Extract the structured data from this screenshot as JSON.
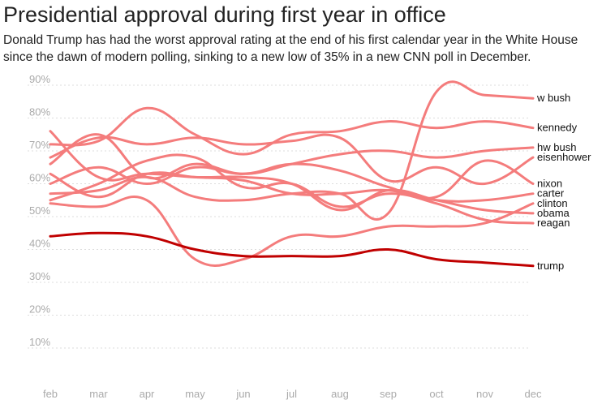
{
  "title": "Presidential approval during first year in office",
  "subtitle": "Donald Trump has had the worst approval rating at the end of his first calendar year in the White House since the dawn of modern polling, sinking to a new low of 35% in a new CNN poll in December.",
  "colors": {
    "highlight": "#c00000",
    "others": "#f47c7c",
    "grid": "#dddddd",
    "tick": "#aaaaaa"
  },
  "chart_data": {
    "type": "line",
    "title": "Presidential approval during first year in office",
    "xlabel": "",
    "ylabel": "",
    "x": [
      "feb",
      "mar",
      "apr",
      "may",
      "jun",
      "jul",
      "aug",
      "sep",
      "oct",
      "nov",
      "dec"
    ],
    "ylim": [
      0,
      90
    ],
    "yticks": [
      10,
      20,
      30,
      40,
      50,
      60,
      70,
      80,
      90
    ],
    "ytick_labels": [
      "10%",
      "20%",
      "30%",
      "40%",
      "50%",
      "60%",
      "70%",
      "80%",
      "90%"
    ],
    "highlight": "trump",
    "series": [
      {
        "name": "w bush",
        "label": "w bush",
        "values": [
          57,
          58,
          62,
          56,
          55,
          57,
          57,
          51,
          88,
          87,
          86
        ]
      },
      {
        "name": "kennedy",
        "label": "kennedy",
        "values": [
          72,
          73,
          83,
          75,
          69,
          75,
          76,
          79,
          77,
          79,
          77
        ]
      },
      {
        "name": "hw bush",
        "label": "hw bush",
        "values": [
          66,
          75,
          62,
          66,
          63,
          66,
          69,
          70,
          68,
          70,
          71
        ]
      },
      {
        "name": "eisenhower",
        "label": "eisenhower",
        "values": [
          68,
          74,
          72,
          74,
          72,
          73,
          74,
          61,
          65,
          60,
          68
        ]
      },
      {
        "name": "nixon",
        "label": "nixon",
        "values": [
          60,
          65,
          60,
          65,
          63,
          66,
          64,
          59,
          56,
          67,
          60
        ]
      },
      {
        "name": "carter",
        "label": "carter",
        "values": [
          63,
          56,
          63,
          62,
          61,
          57,
          57,
          58,
          55,
          55,
          57
        ]
      },
      {
        "name": "clinton",
        "label": "clinton",
        "values": [
          54,
          53,
          55,
          37,
          37,
          44,
          44,
          47,
          47,
          48,
          54
        ]
      },
      {
        "name": "obama",
        "label": "obama",
        "values": [
          76,
          62,
          63,
          62,
          62,
          60,
          52,
          58,
          55,
          52,
          51
        ]
      },
      {
        "name": "reagan",
        "label": "reagan",
        "values": [
          55,
          60,
          67,
          68,
          59,
          60,
          53,
          57,
          54,
          49,
          48
        ]
      },
      {
        "name": "trump",
        "label": "trump",
        "values": [
          44,
          45,
          44,
          40,
          38,
          38,
          38,
          40,
          37,
          36,
          35
        ]
      }
    ]
  }
}
